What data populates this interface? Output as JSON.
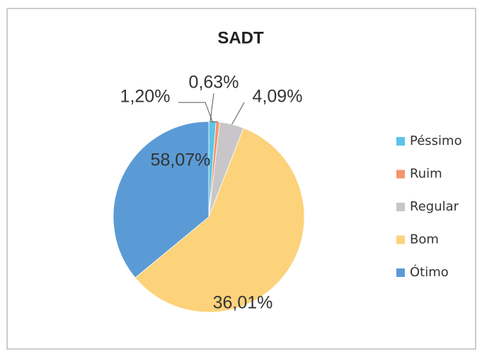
{
  "chart_data": {
    "type": "pie",
    "title": "SADT",
    "categories": [
      "Péssimo",
      "Ruim",
      "Regular",
      "Bom",
      "Ótimo"
    ],
    "values": [
      1.2,
      0.63,
      4.09,
      58.07,
      36.01
    ],
    "value_labels": [
      "1,20%",
      "0,63%",
      "4,09%",
      "58,07%",
      "36,01%"
    ],
    "colors": [
      "#5bc4e8",
      "#f4956a",
      "#c8c6c8",
      "#fcd27a",
      "#5b9bd5"
    ],
    "legend": "right"
  }
}
